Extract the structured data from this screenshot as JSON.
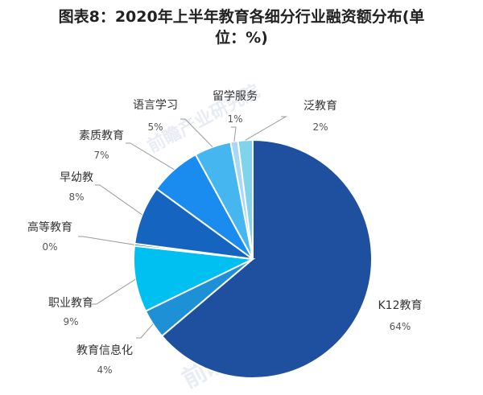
{
  "chart_data": {
    "type": "pie",
    "title_line1": "图表8：2020年上半年教育各细分行业融资额分布(单",
    "title_line2": "位：%)",
    "slices": [
      {
        "label": "K12教育",
        "value": 64,
        "value_text": "64%",
        "color": "#1f4f9f"
      },
      {
        "label": "教育信息化",
        "value": 4,
        "value_text": "4%",
        "color": "#1e90d6"
      },
      {
        "label": "职业教育",
        "value": 9,
        "value_text": "9%",
        "color": "#00c0f2"
      },
      {
        "label": "高等教育",
        "value": 0.3,
        "value_text": "0%",
        "color": "#2b6fc0"
      },
      {
        "label": "早幼教",
        "value": 8,
        "value_text": "8%",
        "color": "#1565c0"
      },
      {
        "label": "素质教育",
        "value": 7,
        "value_text": "7%",
        "color": "#1a8cf0"
      },
      {
        "label": "语言学习",
        "value": 5,
        "value_text": "5%",
        "color": "#45b6f0"
      },
      {
        "label": "留学服务",
        "value": 1,
        "value_text": "1%",
        "color": "#a8d8f4"
      },
      {
        "label": "泛教育",
        "value": 2,
        "value_text": "2%",
        "color": "#7fd3ea"
      }
    ]
  },
  "watermark": {
    "text": "前瞻产业研究院"
  }
}
